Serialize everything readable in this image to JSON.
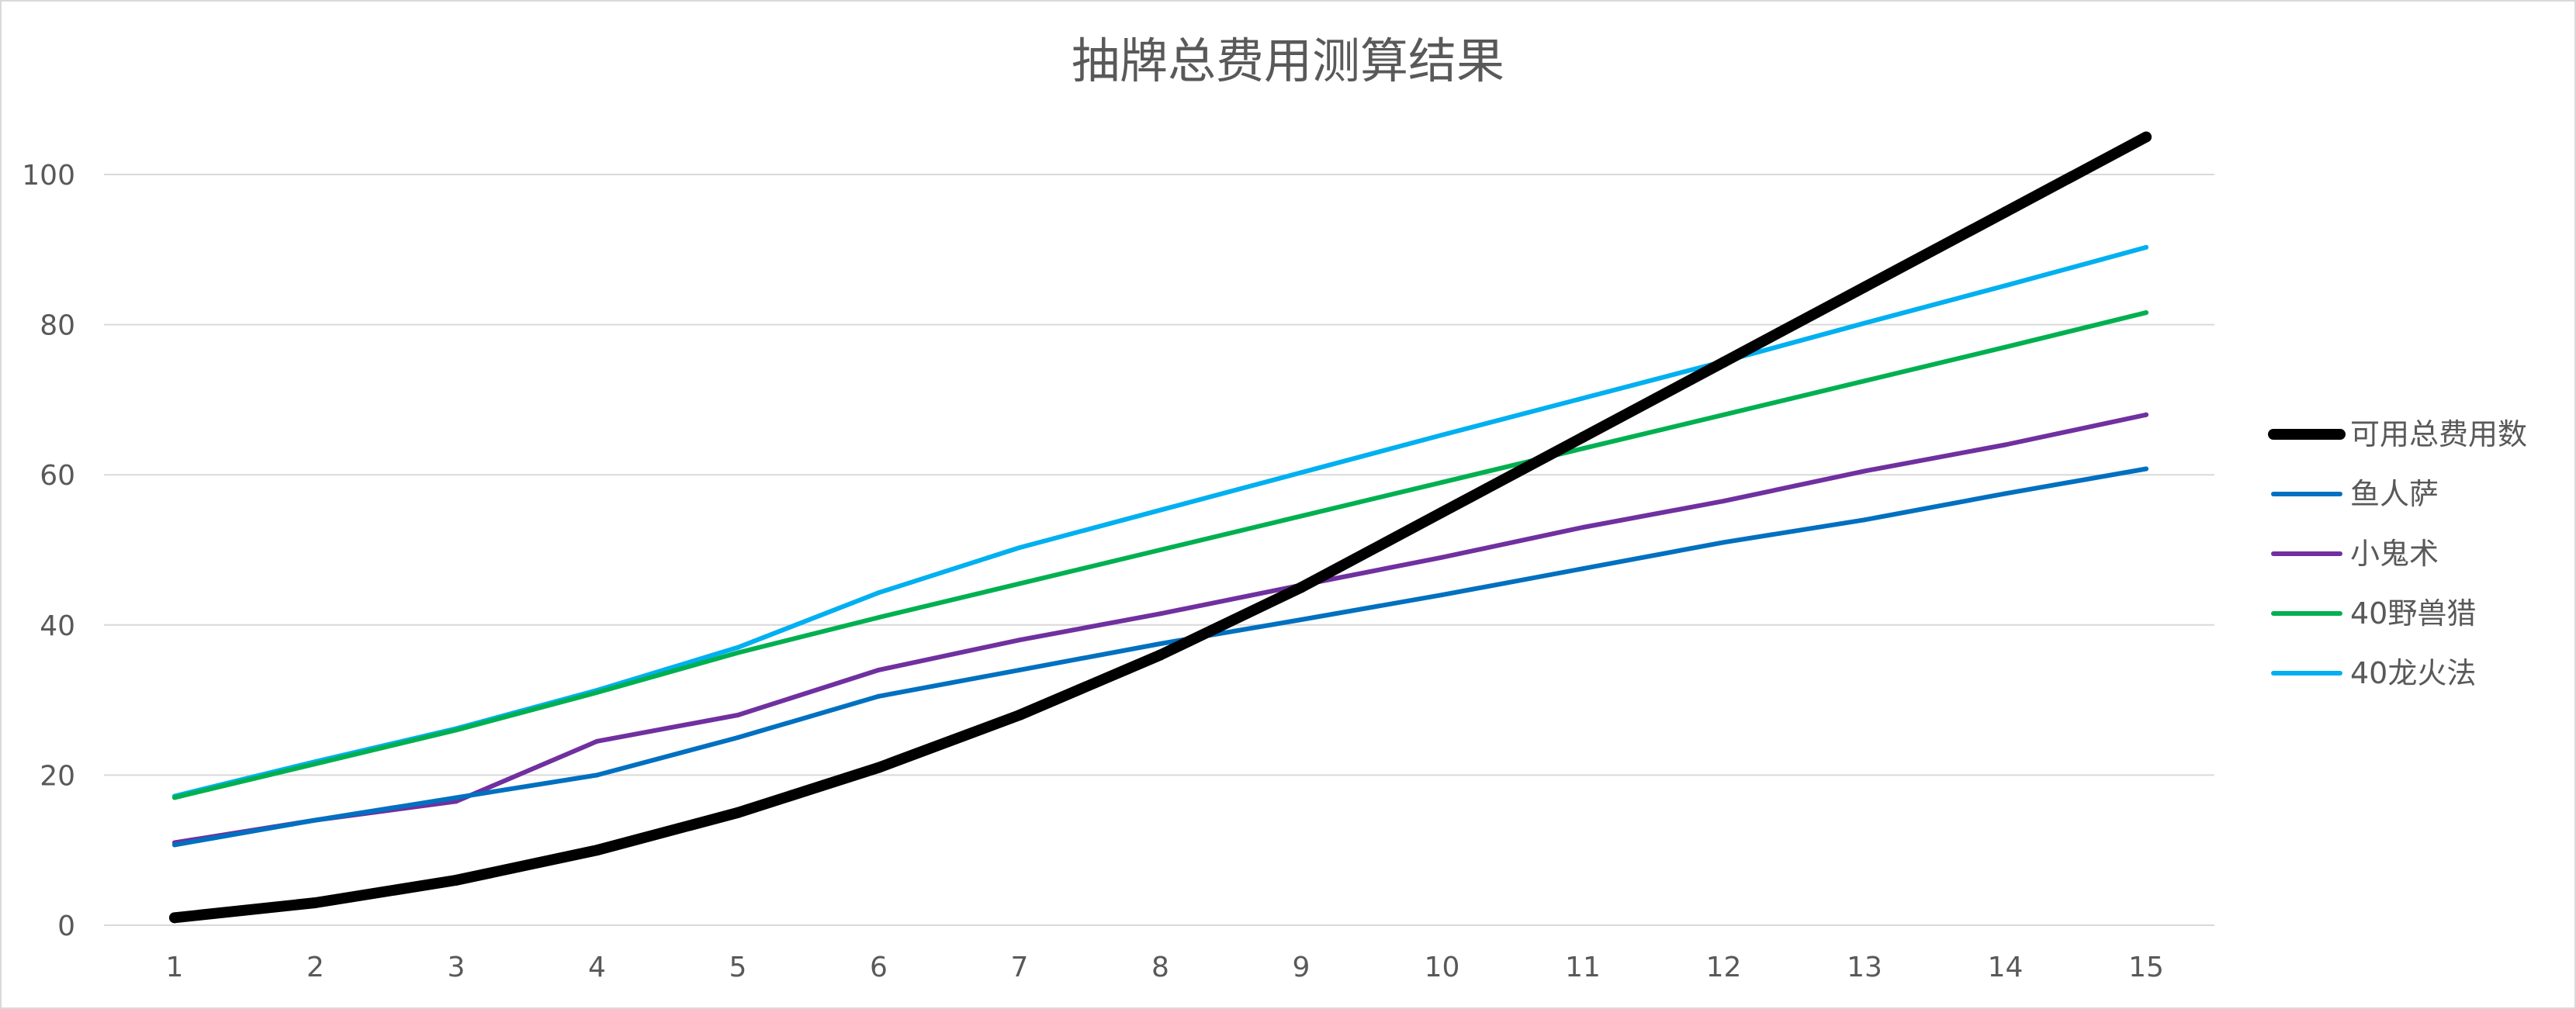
{
  "chart_data": {
    "type": "line",
    "title": "抽牌总费用测算结果",
    "xlabel": "",
    "ylabel": "",
    "x": [
      1,
      2,
      3,
      4,
      5,
      6,
      7,
      8,
      9,
      10,
      11,
      12,
      13,
      14,
      15
    ],
    "ylim": [
      0,
      100
    ],
    "yticks": [
      0,
      20,
      40,
      60,
      80,
      100
    ],
    "grid": true,
    "legend_position": "right",
    "series": [
      {
        "name": "可用总费用数",
        "color": "#000000",
        "width": 14,
        "values": [
          1,
          3,
          6,
          10,
          15,
          21,
          28,
          36,
          45,
          55,
          65,
          75,
          85,
          95,
          105
        ]
      },
      {
        "name": "鱼人萨",
        "color": "#0070c0",
        "width": 6,
        "values": [
          10.7,
          14,
          17,
          20,
          25,
          30.5,
          34,
          37.5,
          40.7,
          44,
          47.5,
          51,
          54,
          57.5,
          60.8
        ]
      },
      {
        "name": "小鬼术",
        "color": "#7030a0",
        "width": 6,
        "values": [
          11,
          14,
          16.5,
          24.5,
          28,
          34,
          38,
          41.5,
          45.3,
          49,
          53,
          56.5,
          60.5,
          64,
          68
        ]
      },
      {
        "name": "40野兽猎",
        "color": "#00b050",
        "width": 6,
        "values": [
          17,
          21.5,
          26,
          31,
          36.3,
          41,
          45.5,
          50,
          54.5,
          59,
          63.5,
          68,
          72.5,
          77,
          81.6
        ]
      },
      {
        "name": "40龙火法",
        "color": "#00b0f0",
        "width": 6,
        "values": [
          17.2,
          21.8,
          26.2,
          31.3,
          37,
          44.3,
          50.3,
          55.3,
          60.3,
          65.3,
          70.2,
          75.1,
          80.2,
          85.2,
          90.3
        ]
      }
    ]
  }
}
